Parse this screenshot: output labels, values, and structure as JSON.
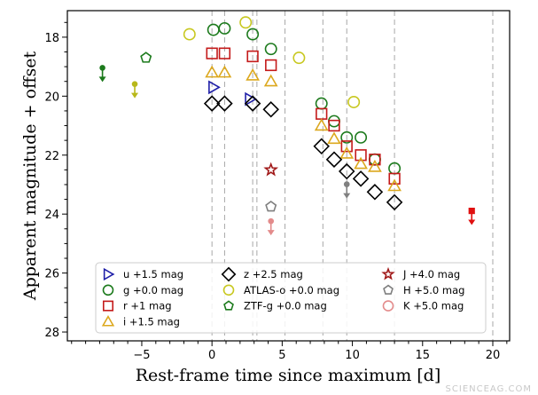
{
  "watermark": "SCIENCEAG.COM",
  "chart_data": {
    "type": "scatter",
    "title": "",
    "xlabel": "Rest-frame time since maximum [d]",
    "ylabel": "Apparent magnitude + offset",
    "xlim": [
      -10.3,
      21.2
    ],
    "ylim": [
      28.3,
      17.1
    ],
    "y_inverted": true,
    "grid": false,
    "x_ticks": [
      -5,
      0,
      5,
      10,
      15,
      20
    ],
    "x_tick_labels": [
      "−5",
      "0",
      "5",
      "10",
      "15",
      "20"
    ],
    "y_ticks": [
      18,
      20,
      22,
      24,
      26,
      28
    ],
    "y_tick_labels": [
      "18",
      "20",
      "22",
      "24",
      "26",
      "28"
    ],
    "vertical_lines": [
      0.0,
      0.9,
      2.9,
      3.2,
      5.2,
      7.9,
      9.6,
      13.0,
      20.0
    ],
    "legend_position": "lower-center",
    "series": [
      {
        "name": "u",
        "label": "u +1.5 mag",
        "offset": 1.5,
        "marker": "triangle-right",
        "color": "#1f1fa8",
        "filled": false,
        "points": [
          [
            0.1,
            19.7
          ],
          [
            2.7,
            20.1
          ]
        ]
      },
      {
        "name": "g",
        "label": "g +0.0 mag",
        "offset": 0.0,
        "marker": "circle",
        "color": "#1c7a1c",
        "filled": false,
        "points": [
          [
            0.1,
            17.75
          ],
          [
            0.9,
            17.7
          ],
          [
            2.9,
            17.9
          ],
          [
            4.2,
            18.4
          ],
          [
            7.8,
            20.25
          ],
          [
            8.7,
            20.85
          ],
          [
            9.6,
            21.4
          ],
          [
            10.6,
            21.4
          ],
          [
            11.6,
            22.15
          ],
          [
            13.0,
            22.45
          ]
        ]
      },
      {
        "name": "r",
        "label": "r +1 mag",
        "offset": 1.0,
        "marker": "square",
        "color": "#c41a1a",
        "filled": false,
        "points": [
          [
            0.0,
            18.55
          ],
          [
            0.9,
            18.55
          ],
          [
            2.9,
            18.65
          ],
          [
            4.2,
            18.95
          ],
          [
            7.8,
            20.6
          ],
          [
            8.7,
            21.0
          ],
          [
            9.6,
            21.7
          ],
          [
            10.6,
            22.0
          ],
          [
            11.6,
            22.15
          ],
          [
            13.0,
            22.8
          ]
        ]
      },
      {
        "name": "i",
        "label": "i +1.5 mag",
        "offset": 1.5,
        "marker": "triangle-up",
        "color": "#dca81e",
        "filled": false,
        "points": [
          [
            0.0,
            19.2
          ],
          [
            0.9,
            19.2
          ],
          [
            2.9,
            19.3
          ],
          [
            4.2,
            19.5
          ],
          [
            7.8,
            21.0
          ],
          [
            8.7,
            21.45
          ],
          [
            9.6,
            21.95
          ],
          [
            10.6,
            22.3
          ],
          [
            11.6,
            22.4
          ],
          [
            13.0,
            23.05
          ]
        ]
      },
      {
        "name": "z",
        "label": "z +2.5 mag",
        "offset": 2.5,
        "marker": "diamond",
        "color": "#000000",
        "filled": false,
        "points": [
          [
            0.0,
            20.25
          ],
          [
            0.9,
            20.25
          ],
          [
            2.9,
            20.25
          ],
          [
            4.2,
            20.45
          ],
          [
            7.8,
            21.7
          ],
          [
            8.7,
            22.15
          ],
          [
            9.6,
            22.55
          ],
          [
            10.6,
            22.8
          ],
          [
            11.6,
            23.25
          ],
          [
            13.0,
            23.6
          ]
        ]
      },
      {
        "name": "ATLAS-o",
        "label": "ATLAS-o +0.0 mag",
        "offset": 0.0,
        "marker": "circle",
        "color": "#c8c820",
        "filled": false,
        "points": [
          [
            -1.6,
            17.9
          ],
          [
            2.4,
            17.5
          ],
          [
            6.2,
            18.7
          ],
          [
            10.1,
            20.2
          ]
        ]
      },
      {
        "name": "ATLAS-o upper limits",
        "marker": "arrow-down",
        "color": "#b8b81a",
        "filled": true,
        "points": [
          [
            -5.5,
            19.8
          ]
        ]
      },
      {
        "name": "ZTF-g",
        "label": "ZTF-g +0.0 mag",
        "offset": 0.0,
        "marker": "pentagon",
        "color": "#1c7a1c",
        "filled": false,
        "points": [
          [
            -4.7,
            18.7
          ]
        ]
      },
      {
        "name": "ZTF-g upper limits",
        "marker": "arrow-down",
        "color": "#1c7a1c",
        "filled": true,
        "points": [
          [
            -7.8,
            19.25
          ]
        ]
      },
      {
        "name": "J",
        "label": "J +4.0 mag",
        "offset": 4.0,
        "marker": "star",
        "color": "#a01818",
        "filled": false,
        "points": [
          [
            4.2,
            22.5
          ]
        ]
      },
      {
        "name": "H",
        "label": "H +5.0 mag",
        "offset": 5.0,
        "marker": "pentagon",
        "color": "#7f7f7f",
        "filled": false,
        "points": [
          [
            4.2,
            23.75
          ]
        ]
      },
      {
        "name": "K",
        "label": "K +5.0 mag",
        "offset": 5.0,
        "marker": "circle",
        "color": "#e38b8b",
        "filled": false,
        "points": []
      },
      {
        "name": "K upper limits",
        "marker": "arrow-down",
        "color": "#e38b8b",
        "filled": true,
        "points": [
          [
            4.2,
            24.45
          ]
        ]
      },
      {
        "name": "upper limit (grey)",
        "marker": "arrow-down",
        "color": "#808080",
        "filled": true,
        "points": [
          [
            9.6,
            23.2
          ]
        ]
      },
      {
        "name": "upper limit (red)",
        "marker": "arrow-down-square",
        "color": "#e01010",
        "filled": true,
        "points": [
          [
            18.5,
            24.1
          ]
        ]
      }
    ],
    "legend": [
      {
        "sym": "triangle-right",
        "color": "#1f1fa8",
        "label": "u +1.5 mag"
      },
      {
        "sym": "circle",
        "color": "#1c7a1c",
        "label": "g +0.0 mag"
      },
      {
        "sym": "square",
        "color": "#c41a1a",
        "label": "r +1 mag"
      },
      {
        "sym": "triangle-up",
        "color": "#dca81e",
        "label": "i +1.5 mag"
      },
      {
        "sym": "diamond",
        "color": "#000000",
        "label": "z +2.5 mag"
      },
      {
        "sym": "circle",
        "color": "#c8c820",
        "label": "ATLAS-o +0.0 mag"
      },
      {
        "sym": "pentagon",
        "color": "#1c7a1c",
        "label": "ZTF-g +0.0 mag"
      },
      {
        "sym": "star",
        "color": "#a01818",
        "label": "J +4.0 mag"
      },
      {
        "sym": "pentagon",
        "color": "#7f7f7f",
        "label": "H +5.0 mag"
      },
      {
        "sym": "circle",
        "color": "#e38b8b",
        "label": "K +5.0 mag"
      }
    ]
  }
}
